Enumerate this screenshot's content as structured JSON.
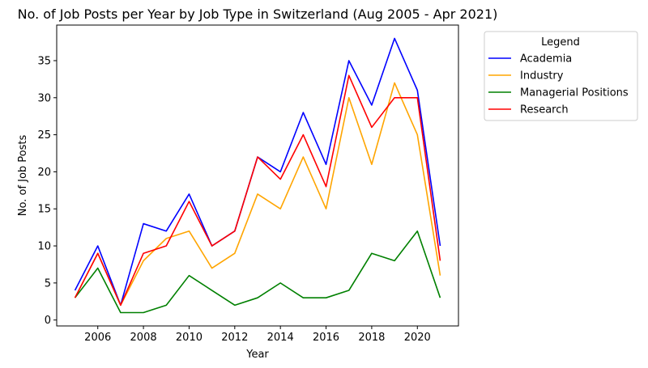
{
  "chart_data": {
    "type": "line",
    "title": "No. of Job Posts per Year by Job Type in Switzerland (Aug 2005 - Apr 2021)",
    "xlabel": "Year",
    "ylabel": "No. of Job Posts",
    "x": [
      2005,
      2006,
      2007,
      2008,
      2009,
      2010,
      2011,
      2012,
      2013,
      2014,
      2015,
      2016,
      2017,
      2018,
      2019,
      2020,
      2021
    ],
    "xlim": [
      2004.2,
      2021.8
    ],
    "ylim": [
      -0.8,
      39.8
    ],
    "xticks": [
      2006,
      2008,
      2010,
      2012,
      2014,
      2016,
      2018,
      2020
    ],
    "yticks": [
      0,
      5,
      10,
      15,
      20,
      25,
      30,
      35
    ],
    "grid": false,
    "legend": {
      "title": "Legend",
      "placement": "outside-right-top"
    },
    "series": [
      {
        "name": "Academia",
        "color": "#0000ff",
        "values": [
          4,
          10,
          2,
          13,
          12,
          17,
          10,
          12,
          22,
          20,
          28,
          21,
          35,
          29,
          38,
          31,
          10
        ]
      },
      {
        "name": "Industry",
        "color": "#ffa500",
        "values": [
          3,
          9,
          2,
          8,
          11,
          12,
          7,
          9,
          17,
          15,
          22,
          15,
          30,
          21,
          32,
          25,
          6
        ]
      },
      {
        "name": "Managerial Positions",
        "color": "#008000",
        "values": [
          3,
          7,
          1,
          1,
          2,
          6,
          4,
          2,
          3,
          5,
          3,
          3,
          4,
          9,
          8,
          12,
          3
        ]
      },
      {
        "name": "Research",
        "color": "#ff0000",
        "values": [
          3,
          9,
          2,
          9,
          10,
          16,
          10,
          12,
          22,
          19,
          25,
          18,
          33,
          26,
          30,
          30,
          8
        ]
      }
    ]
  }
}
